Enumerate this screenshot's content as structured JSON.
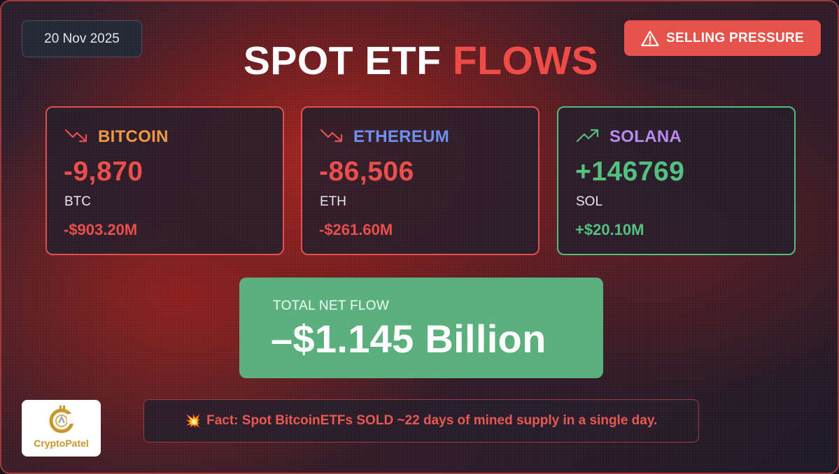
{
  "date": "20 Nov 2025",
  "title": {
    "main": "SPOT ETF",
    "accent": "FLOWS"
  },
  "alert_badge": {
    "label": "SELLING PRESSURE",
    "icon": "warning-triangle-icon",
    "color": "#e65149"
  },
  "assets": [
    {
      "name": "BITCOIN",
      "amount": "-9,870",
      "unit": "BTC",
      "usd": "-$903.20M",
      "trend": "down",
      "trend_icon": "trend-down-icon",
      "name_color": "#f09746"
    },
    {
      "name": "ETHEREUM",
      "amount": "-86,506",
      "unit": "ETH",
      "usd": "-$261.60M",
      "trend": "down",
      "trend_icon": "trend-down-icon",
      "name_color": "#6d8ff0"
    },
    {
      "name": "SOLANA",
      "amount": "+146769",
      "unit": "SOL",
      "usd": "+$20.10M",
      "trend": "up",
      "trend_icon": "trend-up-icon",
      "name_color": "#b88af2"
    }
  ],
  "total": {
    "label": "TOTAL NET FLOW",
    "value": "–$1.145 Billion",
    "color": "#5ab07d"
  },
  "logo": {
    "brand": "CryptoPatel",
    "icon": "cryptopatel-logo-icon"
  },
  "fact": {
    "icon": "collision-icon",
    "text": "Fact: Spot BitcoinETFs SOLD ~22 days of mined supply in a single day."
  },
  "colors": {
    "negative": "#ea4d4b",
    "positive": "#52c07f"
  }
}
